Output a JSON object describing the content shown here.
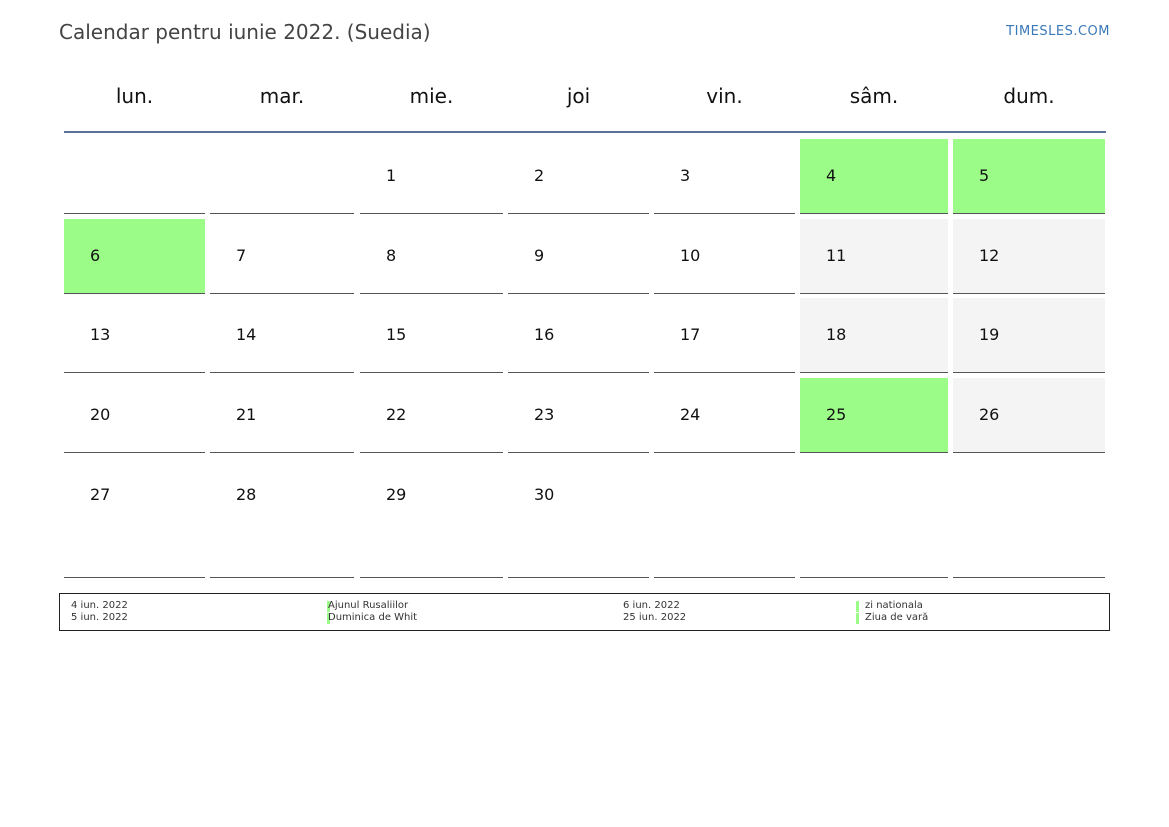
{
  "header": {
    "title": "Calendar pentru iunie 2022. (Suedia)",
    "site": "TIMESLES.COM"
  },
  "colors": {
    "holiday": "#9cfc88",
    "weekend": "#f4f4f4",
    "rule": "#5a7199",
    "link": "#3b78b8"
  },
  "weekdays": [
    "lun.",
    "mar.",
    "mie.",
    "joi",
    "vin.",
    "sâm.",
    "dum."
  ],
  "weeks": [
    [
      {
        "day": "",
        "type": ""
      },
      {
        "day": "",
        "type": ""
      },
      {
        "day": "1",
        "type": ""
      },
      {
        "day": "2",
        "type": ""
      },
      {
        "day": "3",
        "type": ""
      },
      {
        "day": "4",
        "type": "holiday"
      },
      {
        "day": "5",
        "type": "holiday"
      }
    ],
    [
      {
        "day": "6",
        "type": "holiday"
      },
      {
        "day": "7",
        "type": ""
      },
      {
        "day": "8",
        "type": ""
      },
      {
        "day": "9",
        "type": ""
      },
      {
        "day": "10",
        "type": ""
      },
      {
        "day": "11",
        "type": "weekend"
      },
      {
        "day": "12",
        "type": "weekend"
      }
    ],
    [
      {
        "day": "13",
        "type": ""
      },
      {
        "day": "14",
        "type": ""
      },
      {
        "day": "15",
        "type": ""
      },
      {
        "day": "16",
        "type": ""
      },
      {
        "day": "17",
        "type": ""
      },
      {
        "day": "18",
        "type": "weekend"
      },
      {
        "day": "19",
        "type": "weekend"
      }
    ],
    [
      {
        "day": "20",
        "type": ""
      },
      {
        "day": "21",
        "type": ""
      },
      {
        "day": "22",
        "type": ""
      },
      {
        "day": "23",
        "type": ""
      },
      {
        "day": "24",
        "type": ""
      },
      {
        "day": "25",
        "type": "holiday"
      },
      {
        "day": "26",
        "type": "weekend"
      }
    ],
    [
      {
        "day": "27",
        "type": ""
      },
      {
        "day": "28",
        "type": ""
      },
      {
        "day": "29",
        "type": ""
      },
      {
        "day": "30",
        "type": ""
      },
      {
        "day": "",
        "type": ""
      },
      {
        "day": "",
        "type": ""
      },
      {
        "day": "",
        "type": ""
      }
    ]
  ],
  "holidays": [
    {
      "date": "4 iun. 2022",
      "name": "Ajunul Rusaliilor"
    },
    {
      "date": "5 iun. 2022",
      "name": "Duminica de Whit"
    },
    {
      "date": "6 iun. 2022",
      "name": "zi nationala"
    },
    {
      "date": "25 iun. 2022",
      "name": "Ziua de vară"
    }
  ]
}
